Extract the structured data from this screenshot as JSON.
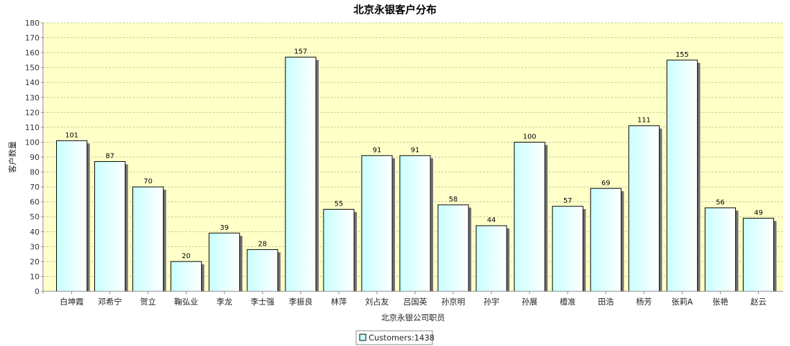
{
  "chart_data": {
    "type": "bar",
    "title": "北京永银客户分布",
    "xlabel": "北京永银公司职员",
    "ylabel": "客户数量",
    "ylim": [
      0,
      180
    ],
    "ytick_step": 10,
    "grid": true,
    "legend_position": "bottom-center",
    "categories": [
      "白坤霞",
      "邓希宁",
      "贺立",
      "鞠弘业",
      "李龙",
      "李士强",
      "李振良",
      "林萍",
      "刘占友",
      "吕国英",
      "孙京明",
      "孙宇",
      "孙展",
      "檀准",
      "田浩",
      "杨芳",
      "张莉A",
      "张艳",
      "赵云"
    ],
    "series": [
      {
        "name": "Customers:1438",
        "values": [
          101,
          87,
          70,
          20,
          39,
          28,
          157,
          55,
          91,
          91,
          58,
          44,
          100,
          57,
          69,
          111,
          155,
          56,
          49
        ]
      }
    ]
  },
  "colors": {
    "plot_background": "#ffffc8",
    "gridline": "#c9c9a0",
    "bar_fill_left": "#c8ffff",
    "bar_fill_right": "#ffffff",
    "bar_border": "#000000",
    "bar_shadow": "#707070"
  }
}
